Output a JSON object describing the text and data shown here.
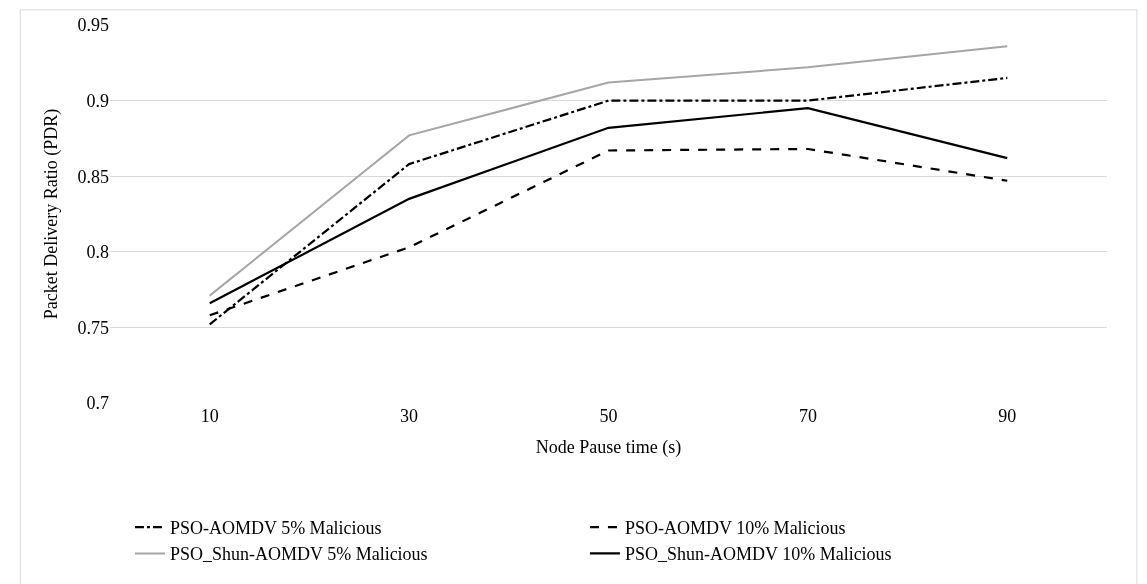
{
  "chart_data": {
    "type": "line",
    "xlabel": "Node Pause time (s)",
    "ylabel": "Packet Delivery Ratio (PDR)",
    "categories": [
      "10",
      "30",
      "50",
      "70",
      "90"
    ],
    "series": [
      {
        "name": "PSO-AOMDV 5% Malicious",
        "color": "#000000",
        "line_style": "dashdot",
        "values": [
          0.752,
          0.858,
          0.9,
          0.9,
          0.915
        ]
      },
      {
        "name": "PSO-AOMDV 10% Malicious",
        "color": "#000000",
        "line_style": "dashed",
        "values": [
          0.758,
          0.803,
          0.867,
          0.868,
          0.847
        ]
      },
      {
        "name": "PSO_Shun-AOMDV 5% Malicious",
        "color": "#a6a6a6",
        "line_style": "solid",
        "values": [
          0.771,
          0.877,
          0.912,
          0.922,
          0.936
        ]
      },
      {
        "name": "PSO_Shun-AOMDV 10% Malicious",
        "color": "#000000",
        "line_style": "solid",
        "values": [
          0.766,
          0.835,
          0.882,
          0.895,
          0.862
        ]
      }
    ],
    "ylim": [
      0.7,
      0.95
    ],
    "yticks": [
      0.7,
      0.75,
      0.8,
      0.85,
      0.9,
      0.95
    ],
    "grid": "y",
    "legend": "bottom",
    "marker": "none"
  }
}
